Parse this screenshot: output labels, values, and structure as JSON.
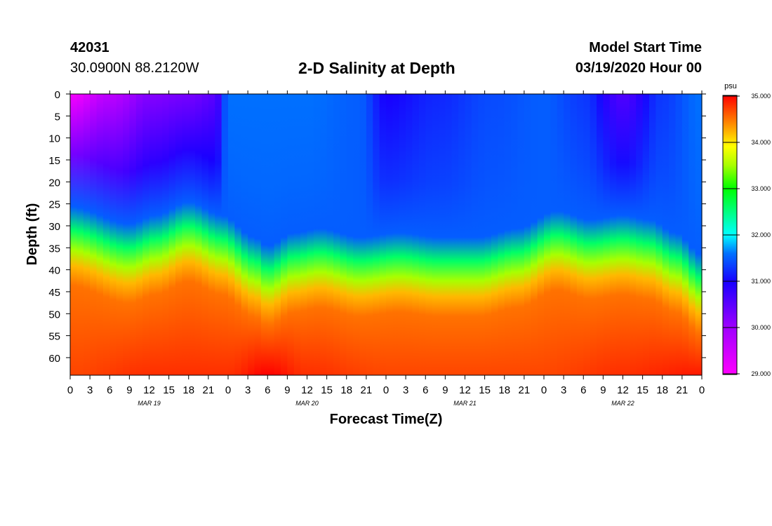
{
  "header": {
    "station_id": "42031",
    "location": "30.0900N 88.2120W",
    "title": "2-D Salinity at Depth",
    "start_label": "Model Start Time",
    "start_value": "03/19/2020 Hour 00"
  },
  "chart_data": {
    "type": "heatmap",
    "title": "2-D Salinity at Depth",
    "xlabel": "Forecast Time(Z)",
    "ylabel": "Depth (ft)",
    "x_tick_labels": [
      "0",
      "3",
      "6",
      "9",
      "12",
      "15",
      "18",
      "21",
      "0",
      "3",
      "6",
      "9",
      "12",
      "15",
      "18",
      "21",
      "0",
      "3",
      "6",
      "9",
      "12",
      "15",
      "18",
      "21",
      "0",
      "3",
      "6",
      "9",
      "12",
      "15",
      "18",
      "21",
      "0"
    ],
    "date_labels": [
      {
        "label": "MAR 19",
        "hour": 12
      },
      {
        "label": "MAR 20",
        "hour": 36
      },
      {
        "label": "MAR 21",
        "hour": 60
      },
      {
        "label": "MAR 22",
        "hour": 84
      }
    ],
    "xlim_hours": [
      0,
      96
    ],
    "y_ticks": [
      0,
      5,
      10,
      15,
      20,
      25,
      30,
      35,
      40,
      45,
      50,
      55,
      60
    ],
    "ylim_ft": [
      0,
      64
    ],
    "colorbar": {
      "units": "psu",
      "min": 29.0,
      "max": 35.0,
      "tick_labels": [
        "35.000",
        "34.000",
        "33.000",
        "32.000",
        "31.000",
        "30.000",
        "29.000"
      ],
      "tick_values": [
        35,
        34,
        33,
        32,
        31,
        30,
        29
      ]
    },
    "colormap": [
      {
        "v": 29.0,
        "color": "#ff00ff"
      },
      {
        "v": 30.0,
        "color": "#a000ff"
      },
      {
        "v": 31.0,
        "color": "#1800ff"
      },
      {
        "v": 31.6,
        "color": "#0070ff"
      },
      {
        "v": 32.0,
        "color": "#00ffff"
      },
      {
        "v": 32.5,
        "color": "#00ff80"
      },
      {
        "v": 33.0,
        "color": "#00ff00"
      },
      {
        "v": 33.5,
        "color": "#a8ff00"
      },
      {
        "v": 33.9,
        "color": "#ffff00"
      },
      {
        "v": 34.3,
        "color": "#ffa000"
      },
      {
        "v": 35.0,
        "color": "#ff0000"
      }
    ],
    "gradient_top_value": 31.5,
    "gradient_bottom_value": 34.8,
    "gradient_width_ft": 18,
    "halocline_depth_ft": [
      {
        "hour": 0,
        "depth": 31
      },
      {
        "hour": 9,
        "depth": 35
      },
      {
        "hour": 13,
        "depth": 33
      },
      {
        "hour": 18,
        "depth": 30
      },
      {
        "hour": 23,
        "depth": 33
      },
      {
        "hour": 28,
        "depth": 38
      },
      {
        "hour": 30,
        "depth": 40
      },
      {
        "hour": 34,
        "depth": 37
      },
      {
        "hour": 38,
        "depth": 36
      },
      {
        "hour": 44,
        "depth": 38
      },
      {
        "hour": 50,
        "depth": 37
      },
      {
        "hour": 56,
        "depth": 38
      },
      {
        "hour": 62,
        "depth": 38
      },
      {
        "hour": 68,
        "depth": 36
      },
      {
        "hour": 74,
        "depth": 32
      },
      {
        "hour": 79,
        "depth": 34
      },
      {
        "hour": 84,
        "depth": 33
      },
      {
        "hour": 88,
        "depth": 34
      },
      {
        "hour": 92,
        "depth": 37
      },
      {
        "hour": 96,
        "depth": 42
      }
    ],
    "surface_salinity": [
      {
        "hour": 0,
        "value": 29.1
      },
      {
        "hour": 6,
        "value": 29.7
      },
      {
        "hour": 12,
        "value": 30.2
      },
      {
        "hour": 18,
        "value": 30.3
      },
      {
        "hour": 22,
        "value": 30.5
      },
      {
        "hour": 24,
        "value": 31.6
      },
      {
        "hour": 36,
        "value": 31.6
      },
      {
        "hour": 44,
        "value": 31.5
      },
      {
        "hour": 48,
        "value": 31.0
      },
      {
        "hour": 56,
        "value": 31.2
      },
      {
        "hour": 64,
        "value": 31.4
      },
      {
        "hour": 72,
        "value": 31.5
      },
      {
        "hour": 78,
        "value": 31.3
      },
      {
        "hour": 84,
        "value": 30.6
      },
      {
        "hour": 90,
        "value": 31.3
      },
      {
        "hour": 96,
        "value": 31.6
      }
    ],
    "bottom_salinity": [
      {
        "hour": 0,
        "value": 34.7
      },
      {
        "hour": 12,
        "value": 34.8
      },
      {
        "hour": 24,
        "value": 34.8
      },
      {
        "hour": 30,
        "value": 35.0
      },
      {
        "hour": 36,
        "value": 34.8
      },
      {
        "hour": 48,
        "value": 34.7
      },
      {
        "hour": 60,
        "value": 34.7
      },
      {
        "hour": 72,
        "value": 34.7
      },
      {
        "hour": 84,
        "value": 34.8
      },
      {
        "hour": 96,
        "value": 34.9
      }
    ]
  }
}
